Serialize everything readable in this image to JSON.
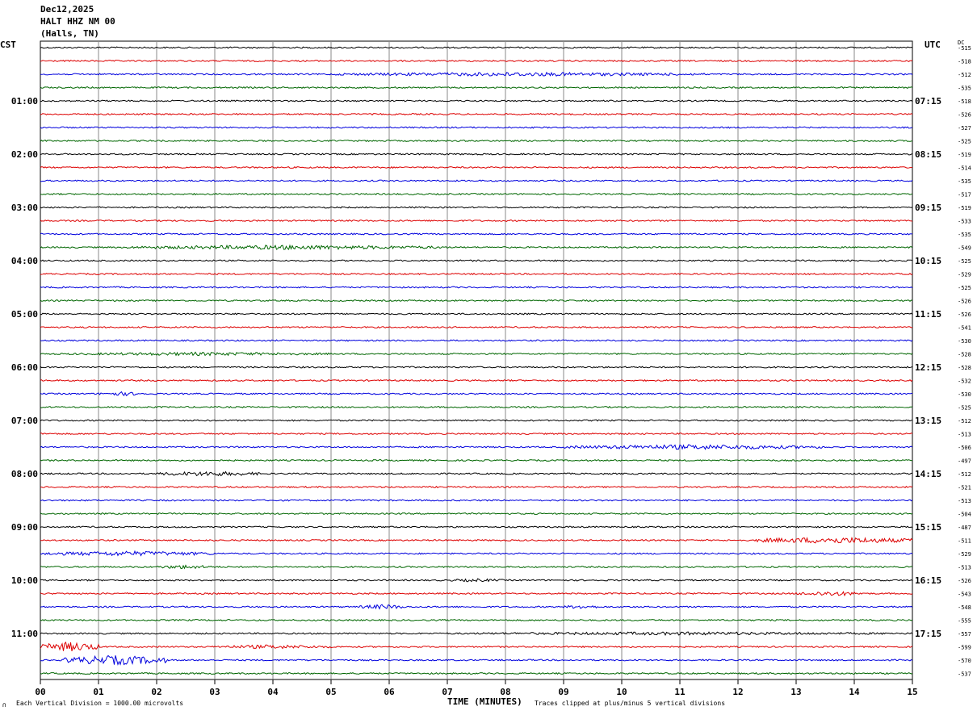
{
  "header": {
    "date": "Dec12,2025",
    "station": "HALT HHZ NM 00",
    "location": "(Halls, TN)"
  },
  "left_timezone": "CST",
  "right_timezone": "UTC",
  "dc_header": "DC",
  "footer": {
    "scale_note": "Each Vertical Division = 1000.00 microvolts",
    "x_axis_title": "TIME (MINUTES)",
    "clip_note": "Traces clipped at plus/minus 5 vertical divisions",
    "corner_mark": "∩"
  },
  "chart_data": {
    "type": "line",
    "title": "HALT HHZ NM 00",
    "xlabel": "TIME (MINUTES)",
    "xlim": [
      0,
      15
    ],
    "x_ticks": [
      "00",
      "01",
      "02",
      "03",
      "04",
      "05",
      "06",
      "07",
      "08",
      "09",
      "10",
      "11",
      "12",
      "13",
      "14",
      "15"
    ],
    "grid": true,
    "trace_colors": [
      "#000000",
      "#dd0000",
      "#0000dd",
      "#006600"
    ],
    "left_hour_labels": [
      "01:00",
      "02:00",
      "03:00",
      "04:00",
      "05:00",
      "06:00",
      "07:00",
      "08:00",
      "09:00",
      "10:00",
      "11:00"
    ],
    "right_hour_labels": [
      "07:15",
      "08:15",
      "09:15",
      "10:15",
      "11:15",
      "12:15",
      "13:15",
      "14:15",
      "15:15",
      "16:15",
      "17:15"
    ],
    "dc_offsets": [
      "-515",
      "-518",
      "-512",
      "-535",
      "-518",
      "-526",
      "-527",
      "-525",
      "-519",
      "-514",
      "-535",
      "-517",
      "-519",
      "-533",
      "-535",
      "-549",
      "-525",
      "-529",
      "-525",
      "-526",
      "-526",
      "-541",
      "-530",
      "-528",
      "-528",
      "-532",
      "-530",
      "-525",
      "-512",
      "-513",
      "-506",
      "-497",
      "-512",
      "-521",
      "-513",
      "-504",
      "-487",
      "-511",
      "-529",
      "-513",
      "-526",
      "-543",
      "-548",
      "-555",
      "-557",
      "-599",
      "-570",
      "-537"
    ],
    "events": [
      {
        "trace": 2,
        "x_start": 5.0,
        "x_end": 11.5,
        "amp": 2.5
      },
      {
        "trace": 15,
        "x_start": 1.5,
        "x_end": 7.0,
        "amp": 2.8
      },
      {
        "trace": 23,
        "x_start": 0.5,
        "x_end": 5.0,
        "amp": 2.2
      },
      {
        "trace": 26,
        "x_start": 1.0,
        "x_end": 1.8,
        "amp": 2.5
      },
      {
        "trace": 30,
        "x_start": 9.0,
        "x_end": 13.5,
        "amp": 3.0
      },
      {
        "trace": 32,
        "x_start": 2.0,
        "x_end": 3.8,
        "amp": 3.0
      },
      {
        "trace": 37,
        "x_start": 12.3,
        "x_end": 15.0,
        "amp": 4.0
      },
      {
        "trace": 38,
        "x_start": 0.0,
        "x_end": 3.0,
        "amp": 3.0
      },
      {
        "trace": 39,
        "x_start": 2.0,
        "x_end": 3.0,
        "amp": 2.5
      },
      {
        "trace": 40,
        "x_start": 7.0,
        "x_end": 8.0,
        "amp": 2.0
      },
      {
        "trace": 41,
        "x_start": 13.0,
        "x_end": 14.2,
        "amp": 3.0
      },
      {
        "trace": 42,
        "x_start": 5.5,
        "x_end": 6.3,
        "amp": 3.0
      },
      {
        "trace": 42,
        "x_start": 9.0,
        "x_end": 9.6,
        "amp": 2.5
      },
      {
        "trace": 44,
        "x_start": 7.0,
        "x_end": 15.0,
        "amp": 2.0
      },
      {
        "trace": 45,
        "x_start": 0.0,
        "x_end": 1.0,
        "amp": 6.0
      },
      {
        "trace": 45,
        "x_start": 3.0,
        "x_end": 5.0,
        "amp": 2.5
      },
      {
        "trace": 46,
        "x_start": 0.4,
        "x_end": 2.2,
        "amp": 6.0
      }
    ]
  }
}
